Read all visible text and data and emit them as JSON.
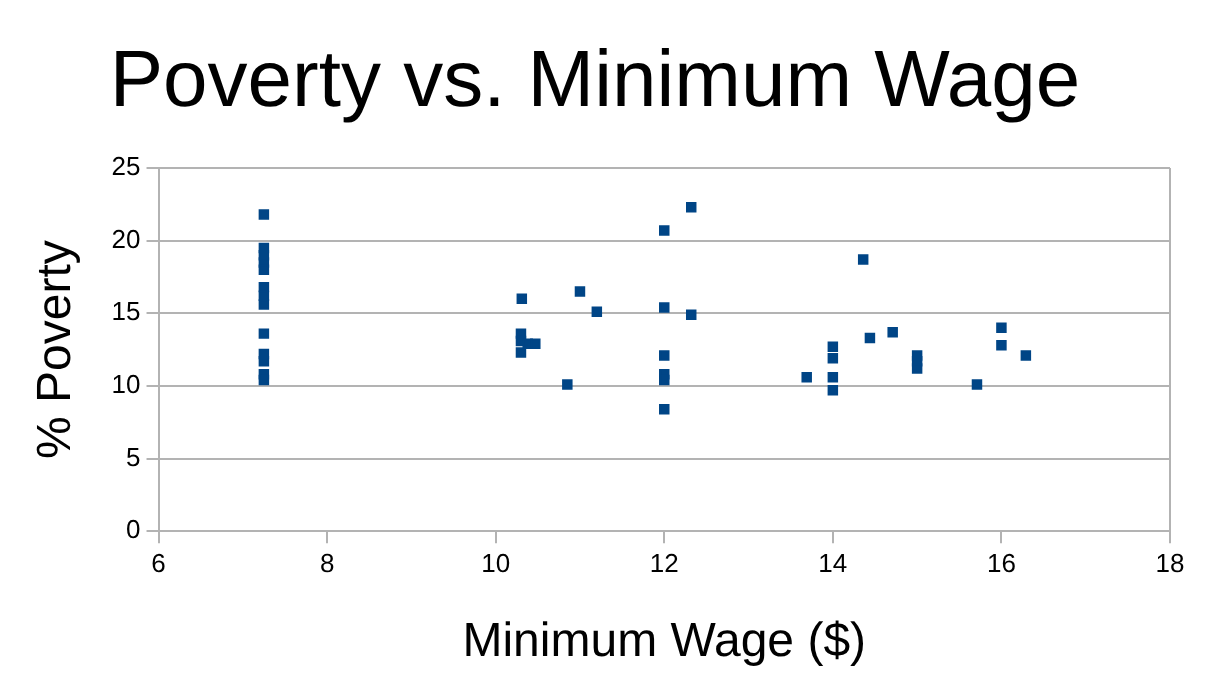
{
  "chart_data": {
    "type": "scatter",
    "title": "Poverty vs. Minimum Wage",
    "xlabel": "Minimum Wage ($)",
    "ylabel": "% Poverty",
    "x": [
      7.25,
      7.25,
      7.25,
      7.25,
      7.25,
      7.25,
      7.25,
      7.25,
      7.25,
      7.25,
      7.25,
      7.25,
      7.25,
      12.32,
      12,
      10.31,
      11,
      11.2,
      12,
      12.32,
      10.3,
      10.3,
      10.38,
      10.47,
      10.3,
      10.85,
      12,
      12,
      12,
      12,
      14.36,
      13.69,
      14,
      14,
      14,
      14,
      14.44,
      14.71,
      15,
      15,
      15,
      15.71,
      16,
      16,
      16.29
    ],
    "series": [
      {
        "color": "#004586",
        "values": [
          21.8,
          19.5,
          19,
          18.5,
          18,
          16.8,
          16.2,
          15.6,
          13.6,
          12.2,
          11.7,
          10.8,
          10.4,
          22.3,
          20.7,
          16,
          16.5,
          15.1,
          15.4,
          14.9,
          13.6,
          13.1,
          12.9,
          12.9,
          12.3,
          10.1,
          12.1,
          10.8,
          10.4,
          8.4,
          18.7,
          10.6,
          12.7,
          11.9,
          10.6,
          9.7,
          13.3,
          13.7,
          12.1,
          11.7,
          11.2,
          10.1,
          14,
          12.8,
          12.1
        ]
      }
    ],
    "xlim": [
      6,
      18
    ],
    "xticks": [
      6,
      8,
      10,
      12,
      14,
      16,
      18
    ],
    "ylim": [
      0,
      25
    ],
    "yticks": [
      0,
      5,
      10,
      15,
      20,
      25
    ],
    "grid": "y",
    "legend": false,
    "marker": "square"
  }
}
